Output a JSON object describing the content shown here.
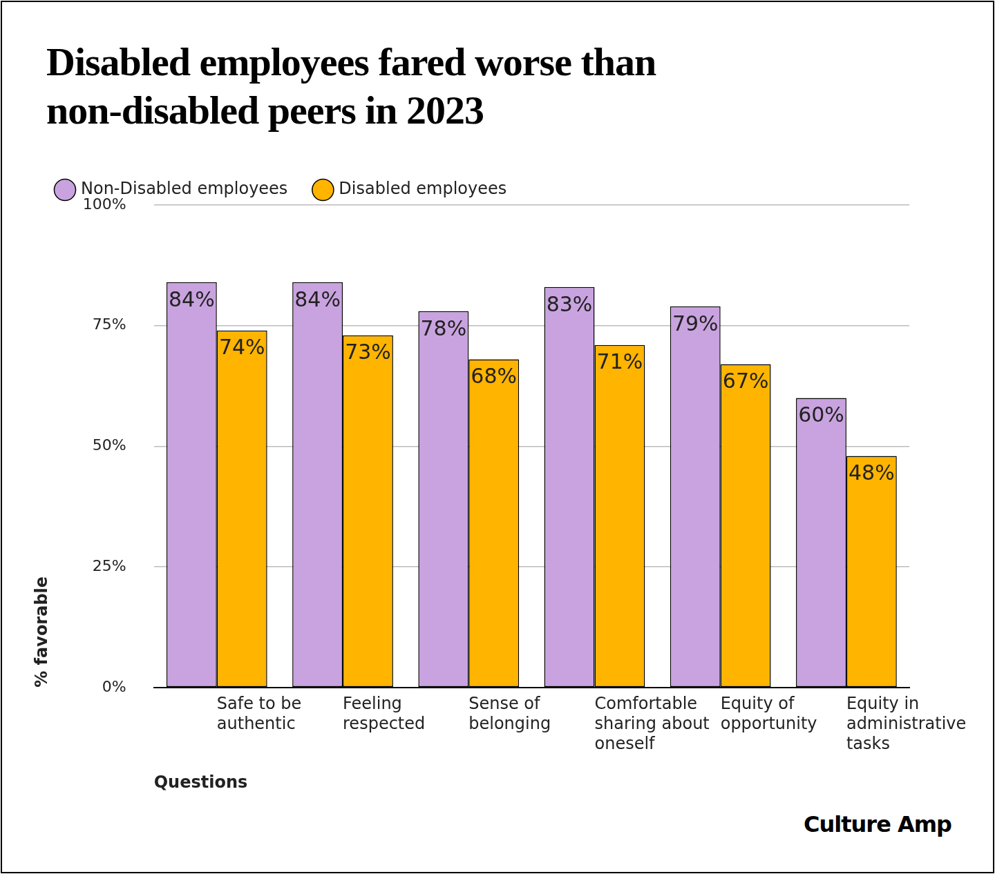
{
  "chart_data": {
    "type": "bar",
    "title": "Disabled employees fared worse than non-disabled peers in 2023",
    "x_label": "Questions",
    "y_label": "% favorable",
    "logo_text": "Culture Amp",
    "categories": [
      "Safe to be authentic",
      "Feeling respected",
      "Sense of belonging",
      "Comfortable sharing about oneself",
      "Equity of opportunity",
      "Equity in administrative tasks"
    ],
    "series": [
      {
        "name": "Non-Disabled employees",
        "color": "#c9a3df",
        "values": [
          84,
          84,
          78,
          83,
          79,
          60
        ],
        "value_labels": [
          "84%",
          "84%",
          "78%",
          "83%",
          "79%",
          "60%"
        ]
      },
      {
        "name": "Disabled employees",
        "color": "#ffb400",
        "values": [
          74,
          73,
          68,
          71,
          67,
          48
        ],
        "value_labels": [
          "74%",
          "73%",
          "68%",
          "71%",
          "67%",
          "48%"
        ]
      }
    ],
    "ylim": [
      0,
      100
    ],
    "yticks": [
      {
        "value": 0,
        "label": "0%"
      },
      {
        "value": 25,
        "label": "25%"
      },
      {
        "value": 50,
        "label": "50%"
      },
      {
        "value": 75,
        "label": "75%"
      },
      {
        "value": 100,
        "label": "100%"
      }
    ],
    "grid": true,
    "legend": "top-left",
    "data_labels": true
  }
}
